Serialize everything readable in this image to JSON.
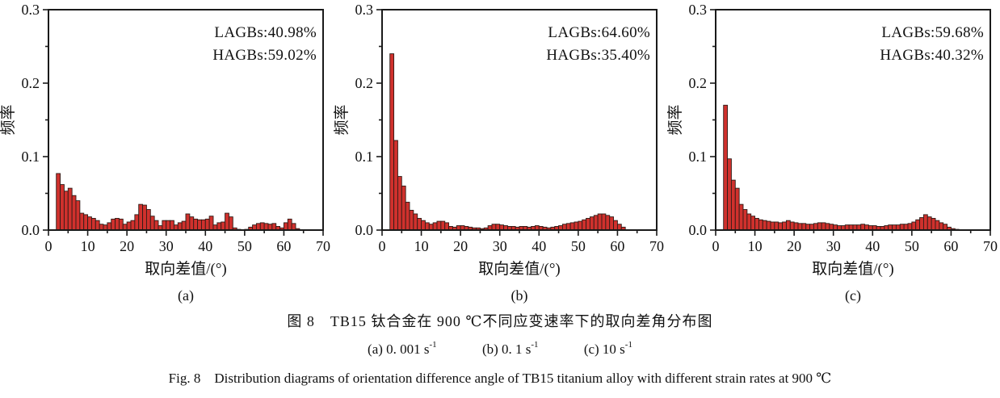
{
  "figure": {
    "caption_zh": "图 8　TB15 钛合金在 900 ℃不同应变速率下的取向差角分布图",
    "caption_conditions": [
      {
        "base": "(a) 0. 001 s",
        "exp": "-1"
      },
      {
        "base": "(b) 0. 1 s",
        "exp": "-1"
      },
      {
        "base": "(c) 10 s",
        "exp": "-1"
      }
    ],
    "caption_en": "Fig. 8　Distribution diagrams of orientation difference angle of TB15 titanium alloy with different strain rates at 900 ℃"
  },
  "colors": {
    "bar_fill": "#d0312d",
    "bar_edge": "#2f1c17",
    "axis": "#1a1a1a"
  },
  "chart_data": [
    {
      "type": "bar",
      "panel_label": "(a)",
      "xlabel": "取向差值/(°)",
      "ylabel": "频率",
      "xlim": [
        0,
        70
      ],
      "ylim": [
        0,
        0.3
      ],
      "x_major_step": 10,
      "x_minor_step": 5,
      "y_major_step": 0.1,
      "y_minor_step": 0.05,
      "x_tick_labels": [
        "0",
        "10",
        "20",
        "30",
        "40",
        "50",
        "60",
        "70"
      ],
      "y_tick_labels": [
        "0.0",
        "0.1",
        "0.2",
        "0.3"
      ],
      "grid": false,
      "legend": "none",
      "annotations": [
        "LAGBs:40.98%",
        "HAGBs:59.02%"
      ],
      "bin_start_deg": 2,
      "bin_width_deg": 1,
      "values": [
        0.077,
        0.062,
        0.053,
        0.057,
        0.047,
        0.04,
        0.023,
        0.021,
        0.018,
        0.016,
        0.013,
        0.008,
        0.007,
        0.01,
        0.015,
        0.016,
        0.015,
        0.008,
        0.011,
        0.013,
        0.021,
        0.035,
        0.034,
        0.028,
        0.019,
        0.013,
        0.006,
        0.013,
        0.013,
        0.013,
        0.007,
        0.01,
        0.012,
        0.022,
        0.018,
        0.015,
        0.014,
        0.014,
        0.015,
        0.019,
        0.007,
        0.01,
        0.011,
        0.023,
        0.018,
        0.003,
        0.001,
        0.0,
        0.001,
        0.004,
        0.007,
        0.009,
        0.01,
        0.009,
        0.008,
        0.009,
        0.005,
        0.003,
        0.01,
        0.015,
        0.009,
        0.002
      ]
    },
    {
      "type": "bar",
      "panel_label": "(b)",
      "xlabel": "取向差值/(°)",
      "ylabel": "频率",
      "xlim": [
        0,
        70
      ],
      "ylim": [
        0,
        0.3
      ],
      "x_major_step": 10,
      "x_minor_step": 5,
      "y_major_step": 0.1,
      "y_minor_step": 0.05,
      "x_tick_labels": [
        "0",
        "10",
        "20",
        "30",
        "40",
        "50",
        "60",
        "70"
      ],
      "y_tick_labels": [
        "0.0",
        "0.1",
        "0.2",
        "0.3"
      ],
      "grid": false,
      "legend": "none",
      "annotations": [
        "LAGBs:64.60%",
        "HAGBs:35.40%"
      ],
      "bin_start_deg": 2,
      "bin_width_deg": 1,
      "values": [
        0.24,
        0.122,
        0.073,
        0.06,
        0.038,
        0.027,
        0.022,
        0.016,
        0.013,
        0.01,
        0.008,
        0.01,
        0.012,
        0.012,
        0.01,
        0.005,
        0.004,
        0.006,
        0.006,
        0.005,
        0.004,
        0.003,
        0.003,
        0.002,
        0.003,
        0.006,
        0.008,
        0.008,
        0.007,
        0.006,
        0.005,
        0.005,
        0.004,
        0.005,
        0.005,
        0.004,
        0.005,
        0.006,
        0.005,
        0.004,
        0.003,
        0.004,
        0.005,
        0.006,
        0.008,
        0.009,
        0.01,
        0.011,
        0.012,
        0.014,
        0.016,
        0.018,
        0.02,
        0.022,
        0.022,
        0.02,
        0.018,
        0.013,
        0.008,
        0.004
      ]
    },
    {
      "type": "bar",
      "panel_label": "(c)",
      "xlabel": "取向差值/(°)",
      "ylabel": "频率",
      "xlim": [
        0,
        70
      ],
      "ylim": [
        0,
        0.3
      ],
      "x_major_step": 10,
      "x_minor_step": 5,
      "y_major_step": 0.1,
      "y_minor_step": 0.05,
      "x_tick_labels": [
        "0",
        "10",
        "20",
        "30",
        "40",
        "50",
        "60",
        "70"
      ],
      "y_tick_labels": [
        "0.0",
        "0.1",
        "0.2",
        "0.3"
      ],
      "grid": false,
      "legend": "none",
      "annotations": [
        "LAGBs:59.68%",
        "HAGBs:40.32%"
      ],
      "bin_start_deg": 2,
      "bin_width_deg": 1,
      "values": [
        0.17,
        0.097,
        0.068,
        0.057,
        0.035,
        0.028,
        0.022,
        0.019,
        0.016,
        0.014,
        0.013,
        0.012,
        0.011,
        0.011,
        0.01,
        0.011,
        0.013,
        0.011,
        0.01,
        0.009,
        0.009,
        0.008,
        0.008,
        0.009,
        0.01,
        0.01,
        0.009,
        0.008,
        0.007,
        0.006,
        0.006,
        0.007,
        0.007,
        0.007,
        0.007,
        0.008,
        0.007,
        0.006,
        0.006,
        0.005,
        0.005,
        0.006,
        0.007,
        0.007,
        0.007,
        0.008,
        0.008,
        0.009,
        0.011,
        0.014,
        0.017,
        0.021,
        0.018,
        0.016,
        0.013,
        0.01,
        0.008,
        0.004,
        0.002,
        0.001
      ]
    }
  ]
}
